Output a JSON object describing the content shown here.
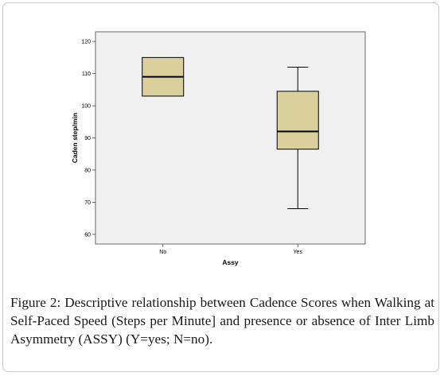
{
  "chart_data": {
    "type": "boxplot",
    "ylabel": "Caden step/min",
    "xlabel": "Assy",
    "ylim": [
      57,
      123
    ],
    "yticks": [
      60,
      70,
      80,
      90,
      100,
      110,
      120
    ],
    "categories": [
      "No",
      "Yes"
    ],
    "boxes": [
      {
        "category": "No",
        "whisker_low": 103,
        "q1": 103,
        "median": 109,
        "q3": 115,
        "whisker_high": 115
      },
      {
        "category": "Yes",
        "whisker_low": 68,
        "q1": 86.5,
        "median": 92,
        "q3": 104.5,
        "whisker_high": 112
      }
    ],
    "box_color": "#d9d09d",
    "grid": false
  },
  "caption": {
    "label": "Figure 2:",
    "text": "Descriptive relationship between Cadence Scores when Walking at Self-Paced Speed (Steps per Minute] and presence or absence of Inter Limb Asymmetry (ASSY) (Y=yes; N=no)."
  }
}
